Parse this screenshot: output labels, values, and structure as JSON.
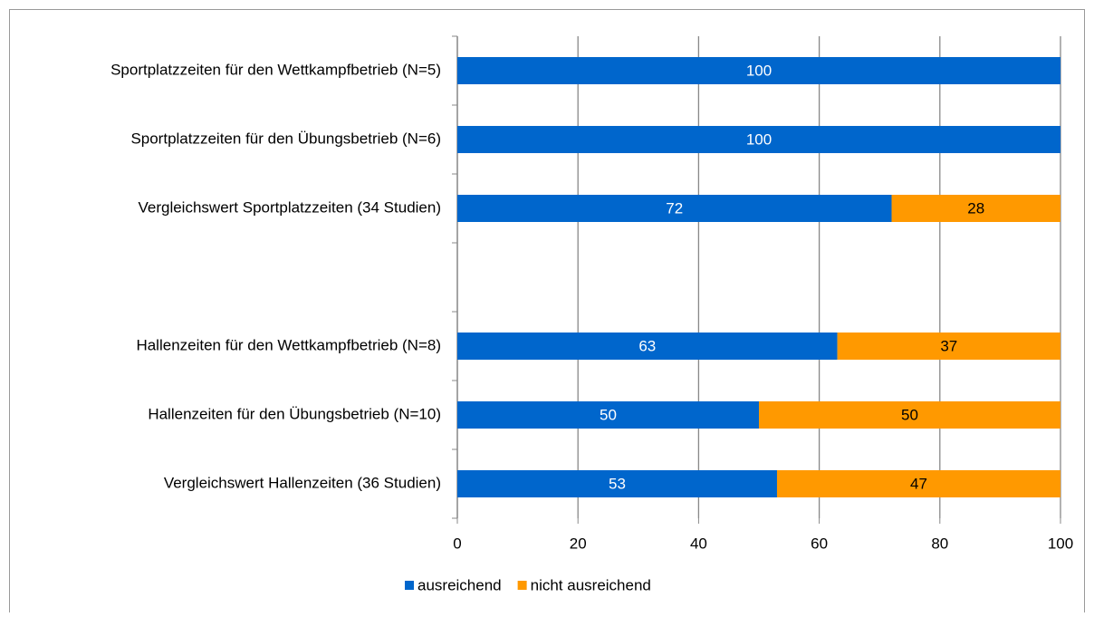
{
  "chart_data": {
    "type": "stacked-bar-horizontal",
    "categories": [
      "Sportplatzzeiten für den Wettkampfbetrieb (N=5)",
      "Sportplatzzeiten für den Übungsbetrieb (N=6)",
      "Vergleichswert Sportplatzzeiten (34 Studien)",
      null,
      "Hallenzeiten für den Wettkampfbetrieb (N=8)",
      "Hallenzeiten für den Übungsbetrieb (N=10)",
      "Vergleichswert Hallenzeiten (36 Studien)"
    ],
    "series": [
      {
        "name": "ausreichend",
        "color": "#0066cc",
        "label_color": "#ffffff",
        "values": [
          100,
          100,
          72,
          null,
          63,
          50,
          53
        ]
      },
      {
        "name": "nicht ausreichend",
        "color": "#ff9900",
        "label_color": "#000000",
        "values": [
          null,
          null,
          28,
          null,
          37,
          50,
          47
        ]
      }
    ],
    "xlim": [
      0,
      100
    ],
    "xticks": [
      0,
      20,
      40,
      60,
      80,
      100
    ],
    "grid": true,
    "legend": "bottom"
  }
}
